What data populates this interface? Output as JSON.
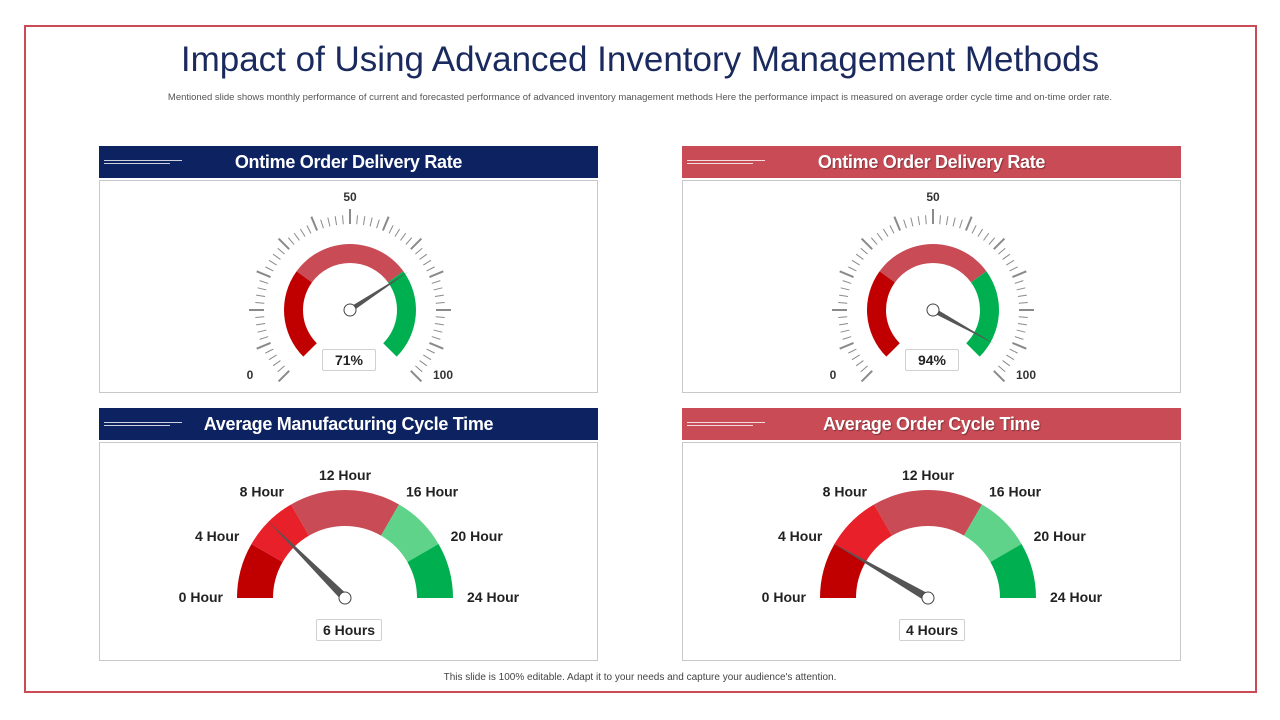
{
  "slide": {
    "title": "Impact of Using Advanced Inventory Management Methods",
    "subtitle": "Mentioned slide shows monthly performance of current and forecasted performance of advanced inventory management methods Here the performance impact is measured on average order cycle time and on-time order rate.",
    "footer": "This slide is 100% editable.  Adapt it to your needs and capture your audience's attention."
  },
  "colors": {
    "navy": "#0d2260",
    "accent_red": "#c84b55",
    "gauge_dark_red": "#c00000",
    "gauge_rose": "#c84b55",
    "gauge_red": "#e8202a",
    "gauge_green": "#00b050",
    "gauge_light_green": "#5fd38a"
  },
  "panels": [
    {
      "title": "Ontime Order Delivery Rate",
      "value_label": "71%"
    },
    {
      "title": "Ontime Order Delivery Rate",
      "value_label": "94%"
    },
    {
      "title": "Average Manufacturing Cycle Time",
      "value_label": "6 Hours"
    },
    {
      "title": "Average Order Cycle Time",
      "value_label": "4 Hours"
    }
  ],
  "chart_data": [
    {
      "type": "gauge",
      "title": "Ontime Order Delivery Rate",
      "min": 0,
      "max": 100,
      "value": 71,
      "tick_labels": [
        "0",
        "50",
        "100"
      ],
      "bands": [
        {
          "from": 0,
          "to": 30,
          "color": "#c00000"
        },
        {
          "from": 30,
          "to": 70,
          "color": "#c84b55"
        },
        {
          "from": 70,
          "to": 100,
          "color": "#00b050"
        }
      ]
    },
    {
      "type": "gauge",
      "title": "Ontime Order Delivery Rate",
      "min": 0,
      "max": 100,
      "value": 94,
      "tick_labels": [
        "0",
        "50",
        "100"
      ],
      "bands": [
        {
          "from": 0,
          "to": 30,
          "color": "#c00000"
        },
        {
          "from": 30,
          "to": 70,
          "color": "#c84b55"
        },
        {
          "from": 70,
          "to": 100,
          "color": "#00b050"
        }
      ]
    },
    {
      "type": "gauge",
      "title": "Average Manufacturing Cycle Time",
      "min": 0,
      "max": 24,
      "value": 6,
      "unit": "Hour",
      "tick_labels": [
        "0 Hour",
        "4 Hour",
        "8 Hour",
        "12 Hour",
        "16 Hour",
        "20 Hour",
        "24 Hour"
      ],
      "bands": [
        {
          "from": 0,
          "to": 4,
          "color": "#c00000"
        },
        {
          "from": 4,
          "to": 8,
          "color": "#e8202a"
        },
        {
          "from": 8,
          "to": 12,
          "color": "#c84b55"
        },
        {
          "from": 12,
          "to": 16,
          "color": "#c84b55"
        },
        {
          "from": 16,
          "to": 20,
          "color": "#5fd38a"
        },
        {
          "from": 20,
          "to": 24,
          "color": "#00b050"
        }
      ]
    },
    {
      "type": "gauge",
      "title": "Average Order Cycle Time",
      "min": 0,
      "max": 24,
      "value": 4,
      "unit": "Hour",
      "tick_labels": [
        "0 Hour",
        "4 Hour",
        "8 Hour",
        "12 Hour",
        "16 Hour",
        "20 Hour",
        "24 Hour"
      ],
      "bands": [
        {
          "from": 0,
          "to": 4,
          "color": "#c00000"
        },
        {
          "from": 4,
          "to": 8,
          "color": "#e8202a"
        },
        {
          "from": 8,
          "to": 12,
          "color": "#c84b55"
        },
        {
          "from": 12,
          "to": 16,
          "color": "#c84b55"
        },
        {
          "from": 16,
          "to": 20,
          "color": "#5fd38a"
        },
        {
          "from": 20,
          "to": 24,
          "color": "#00b050"
        }
      ]
    }
  ]
}
